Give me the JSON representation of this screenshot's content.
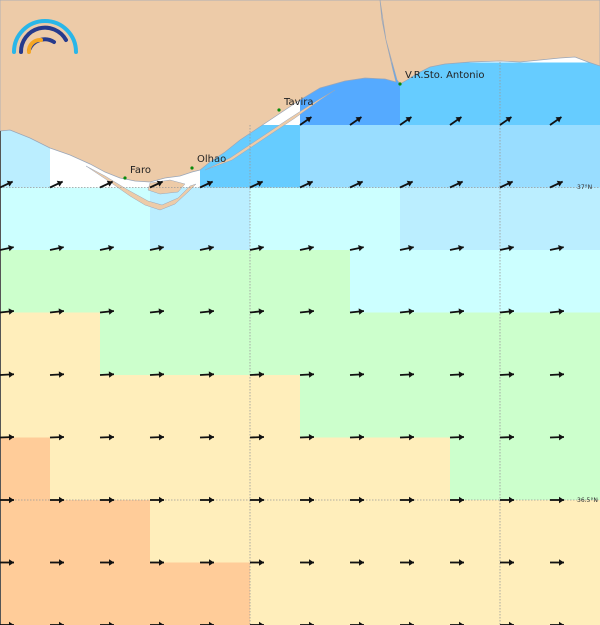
{
  "map": {
    "land_color": "#edcba8",
    "coast_color": "#9aa6b8",
    "grid_color": "#999999",
    "cell_colors": [
      [
        "land",
        "land",
        "land",
        "land",
        "land",
        "land",
        "#55aaff",
        "#55aaff",
        "#66ccff",
        "#66ccff",
        "#66ccff",
        "#66ccff"
      ],
      [
        "#bbeeff",
        "#ffffff",
        "#ffffff",
        "#ffffff",
        "#66ccff",
        "#66ccff",
        "#99ddff",
        "#99ddff",
        "#99ddff",
        "#99ddff",
        "#99ddff",
        "#99ddff"
      ],
      [
        "#ccffff",
        "#ccffff",
        "#ccffff",
        "#bbeeff",
        "#bbeeff",
        "#ccffff",
        "#ccffff",
        "#ccffff",
        "#bbeeff",
        "#bbeeff",
        "#bbeeff",
        "#bbeeff"
      ],
      [
        "#ccffcc",
        "#ccffcc",
        "#ccffcc",
        "#ccffcc",
        "#ccffcc",
        "#ccffcc",
        "#ccffcc",
        "#ccffff",
        "#ccffff",
        "#ccffff",
        "#ccffff",
        "#ccffff"
      ],
      [
        "#ffeebb",
        "#ffeebb",
        "#ccffcc",
        "#ccffcc",
        "#ccffcc",
        "#ccffcc",
        "#ccffcc",
        "#ccffcc",
        "#ccffcc",
        "#ccffcc",
        "#ccffcc",
        "#ccffcc"
      ],
      [
        "#ffeebb",
        "#ffeebb",
        "#ffeebb",
        "#ffeebb",
        "#ffeebb",
        "#ffeebb",
        "#ccffcc",
        "#ccffcc",
        "#ccffcc",
        "#ccffcc",
        "#ccffcc",
        "#ccffcc"
      ],
      [
        "#ffcc99",
        "#ffeebb",
        "#ffeebb",
        "#ffeebb",
        "#ffeebb",
        "#ffeebb",
        "#ffeebb",
        "#ffeebb",
        "#ffeebb",
        "#ccffcc",
        "#ccffcc",
        "#ccffcc"
      ],
      [
        "#ffcc99",
        "#ffcc99",
        "#ffcc99",
        "#ffeebb",
        "#ffeebb",
        "#ffeebb",
        "#ffeebb",
        "#ffeebb",
        "#ffeebb",
        "#ffeebb",
        "#ffeebb",
        "#ffeebb"
      ],
      [
        "#ffcc99",
        "#ffcc99",
        "#ffcc99",
        "#ffcc99",
        "#ffcc99",
        "#ffeebb",
        "#ffeebb",
        "#ffeebb",
        "#ffeebb",
        "#ffeebb",
        "#ffeebb",
        "#ffeebb"
      ]
    ],
    "arrow_rows": [
      {
        "direction_deg": 35,
        "columns": [
          6,
          7,
          8,
          9,
          10,
          11
        ]
      },
      {
        "direction_deg": 25,
        "columns": [
          0,
          1,
          2,
          3,
          4,
          5,
          6,
          7,
          8,
          9,
          10,
          11
        ]
      },
      {
        "direction_deg": 12,
        "columns": [
          0,
          1,
          2,
          3,
          4,
          5,
          6,
          7,
          8,
          9,
          10,
          11
        ]
      },
      {
        "direction_deg": 6,
        "columns": [
          0,
          1,
          2,
          3,
          4,
          5,
          6,
          7,
          8,
          9,
          10,
          11
        ]
      },
      {
        "direction_deg": 3,
        "columns": [
          0,
          1,
          2,
          3,
          4,
          5,
          6,
          7,
          8,
          9,
          10,
          11
        ]
      },
      {
        "direction_deg": 2,
        "columns": [
          0,
          1,
          2,
          3,
          4,
          5,
          6,
          7,
          8,
          9,
          10,
          11
        ]
      },
      {
        "direction_deg": 0,
        "columns": [
          0,
          1,
          2,
          3,
          4,
          5,
          6,
          7,
          8,
          9,
          10,
          11
        ]
      },
      {
        "direction_deg": 0,
        "columns": [
          0,
          1,
          2,
          3,
          4,
          5,
          6,
          7,
          8,
          9,
          10,
          11
        ]
      },
      {
        "direction_deg": 0,
        "columns": [
          0,
          1,
          2,
          3,
          4,
          5,
          6,
          7,
          8,
          9,
          10,
          11
        ]
      }
    ],
    "places": [
      {
        "name": "Faro"
      },
      {
        "name": "Olhao"
      },
      {
        "name": "Tavira"
      },
      {
        "name": "V.R.Sto. Antonio"
      }
    ],
    "latitude_labels": [
      "37°N",
      "36.5°N"
    ],
    "logo_colors": [
      "#29b6e8",
      "#263a8c",
      "#f5a623"
    ]
  }
}
